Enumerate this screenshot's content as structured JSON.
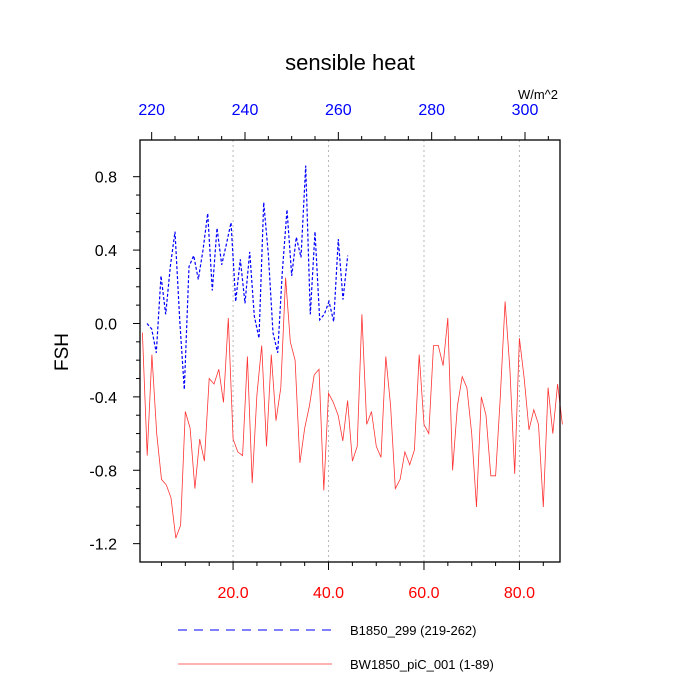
{
  "chart_data": {
    "type": "line",
    "title": "sensible heat",
    "ylabel": "FSH",
    "units_label": "W/m^2",
    "ylim": [
      -1.3,
      1.0
    ],
    "yticks": [
      {
        "value": 0.8,
        "label": "0.8"
      },
      {
        "value": 0.4,
        "label": "0.4"
      },
      {
        "value": 0.0,
        "label": "0.0"
      },
      {
        "value": -0.4,
        "label": "-0.4"
      },
      {
        "value": -0.8,
        "label": "-0.8"
      },
      {
        "value": -1.2,
        "label": "-1.2"
      }
    ],
    "bottom_axis": {
      "range": [
        0.5,
        88.5
      ],
      "color": "#ff0000",
      "ticks": [
        {
          "value": 20,
          "label": "20.0"
        },
        {
          "value": 40,
          "label": "40.0"
        },
        {
          "value": 60,
          "label": "60.0"
        },
        {
          "value": 80,
          "label": "80.0"
        }
      ]
    },
    "top_axis": {
      "range": [
        217.5,
        307.5
      ],
      "color": "#0000ff",
      "ticks": [
        {
          "value": 220,
          "label": "220"
        },
        {
          "value": 240,
          "label": "240"
        },
        {
          "value": 260,
          "label": "260"
        },
        {
          "value": 280,
          "label": "280"
        },
        {
          "value": 300,
          "label": "300"
        }
      ]
    },
    "gridlines_x": [
      20,
      40,
      60,
      80
    ],
    "series": [
      {
        "name": "B1850_299 (219-262)",
        "color": "#0000ff",
        "dash": "dashed",
        "axis": "top",
        "x_start": 219,
        "values": [
          0.0,
          -0.03,
          -0.16,
          0.26,
          0.05,
          0.31,
          0.5,
          0.02,
          -0.36,
          0.31,
          0.37,
          0.24,
          0.4,
          0.6,
          0.18,
          0.52,
          0.32,
          0.43,
          0.55,
          0.12,
          0.35,
          0.11,
          0.39,
          0.04,
          -0.08,
          0.66,
          0.38,
          -0.05,
          -0.16,
          0.28,
          0.62,
          0.26,
          0.47,
          0.36,
          0.86,
          0.05,
          0.5,
          0.02,
          0.05,
          0.12,
          0.01,
          0.46,
          0.13,
          0.37
        ]
      },
      {
        "name": "BW1850_piC_001 (1-89)",
        "color": "#ff3333",
        "dash": "solid",
        "axis": "bottom",
        "x_start": 1,
        "values": [
          -0.05,
          -0.72,
          -0.17,
          -0.6,
          -0.85,
          -0.88,
          -0.95,
          -1.17,
          -1.1,
          -0.48,
          -0.57,
          -0.9,
          -0.63,
          -0.75,
          -0.3,
          -0.33,
          -0.25,
          -0.43,
          0.03,
          -0.63,
          -0.7,
          -0.72,
          -0.18,
          -0.87,
          -0.39,
          -0.12,
          -0.67,
          -0.17,
          -0.53,
          -0.35,
          0.25,
          -0.1,
          -0.2,
          -0.76,
          -0.57,
          -0.45,
          -0.28,
          -0.25,
          -0.91,
          -0.38,
          -0.43,
          -0.5,
          -0.64,
          -0.42,
          -0.75,
          -0.67,
          0.05,
          -0.55,
          -0.48,
          -0.67,
          -0.73,
          -0.18,
          -0.45,
          -0.9,
          -0.85,
          -0.7,
          -0.77,
          -0.69,
          -0.17,
          -0.55,
          -0.6,
          -0.12,
          -0.12,
          -0.23,
          0.03,
          -0.8,
          -0.45,
          -0.29,
          -0.35,
          -0.6,
          -1.0,
          -0.4,
          -0.5,
          -0.83,
          -0.83,
          -0.4,
          0.12,
          -0.25,
          -0.82,
          -0.08,
          -0.3,
          -0.58,
          -0.47,
          -0.55,
          -1.0,
          -0.35,
          -0.6,
          -0.33,
          -0.55
        ]
      }
    ]
  }
}
